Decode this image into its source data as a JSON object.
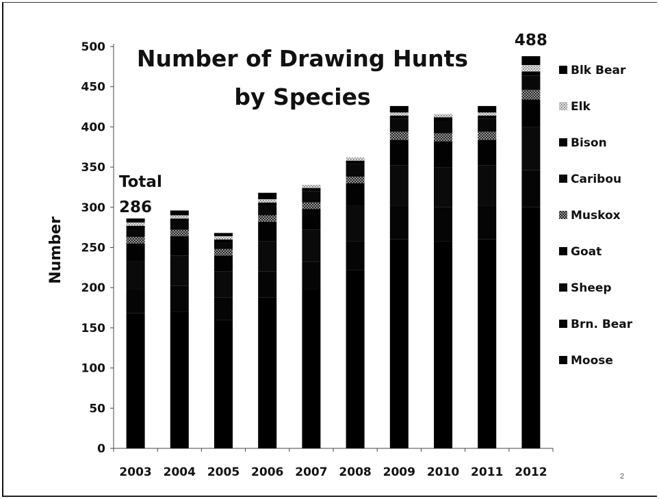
{
  "page": {
    "number": "2"
  },
  "chart_data": {
    "type": "bar",
    "stacked": true,
    "title": "Number of Drawing Hunts by Species",
    "title_lines": [
      "Number of Drawing Hunts",
      "by Species"
    ],
    "xlabel": "",
    "ylabel": "Number",
    "ylim": [
      0,
      500
    ],
    "yticks": [
      0,
      50,
      100,
      150,
      200,
      250,
      300,
      350,
      400,
      450,
      500
    ],
    "grid": false,
    "legend_position": "right",
    "categories": [
      "2003",
      "2004",
      "2005",
      "2006",
      "2007",
      "2008",
      "2009",
      "2010",
      "2011",
      "2012"
    ],
    "series": [
      {
        "name": "Moose",
        "values": [
          168,
          170,
          160,
          188,
          198,
          222,
          260,
          258,
          260,
          300
        ],
        "color": "#000000"
      },
      {
        "name": "Brn. Bear",
        "values": [
          30,
          32,
          28,
          32,
          34,
          36,
          42,
          42,
          42,
          46
        ],
        "color": "#050505"
      },
      {
        "name": "Sheep",
        "values": [
          35,
          38,
          32,
          38,
          40,
          44,
          50,
          50,
          50,
          54
        ],
        "color": "#0a0a0a"
      },
      {
        "name": "Goat",
        "values": [
          22,
          24,
          20,
          24,
          26,
          28,
          32,
          32,
          32,
          34
        ],
        "color": "#020202"
      },
      {
        "name": "Muskox",
        "values": [
          8,
          8,
          8,
          8,
          8,
          8,
          10,
          10,
          10,
          12
        ],
        "color": "#4a4a4a",
        "pattern": "checker"
      },
      {
        "name": "Caribou",
        "values": [
          10,
          10,
          8,
          12,
          14,
          16,
          16,
          16,
          16,
          18
        ],
        "color": "#080808"
      },
      {
        "name": "Bison",
        "values": [
          4,
          4,
          4,
          4,
          4,
          4,
          4,
          4,
          4,
          5
        ],
        "color": "#000000"
      },
      {
        "name": "Elk",
        "values": [
          4,
          4,
          4,
          4,
          4,
          4,
          4,
          4,
          4,
          8
        ],
        "color": "#bdbdbd",
        "pattern": "dots"
      },
      {
        "name": "Blk Bear",
        "values": [
          5,
          6,
          4,
          8,
          0,
          0,
          8,
          0,
          8,
          11
        ],
        "color": "#000000"
      }
    ],
    "annotations": [
      {
        "text": "Total",
        "category": "2003"
      },
      {
        "text": "286",
        "category": "2003"
      },
      {
        "text": "488",
        "category": "2012"
      }
    ]
  }
}
